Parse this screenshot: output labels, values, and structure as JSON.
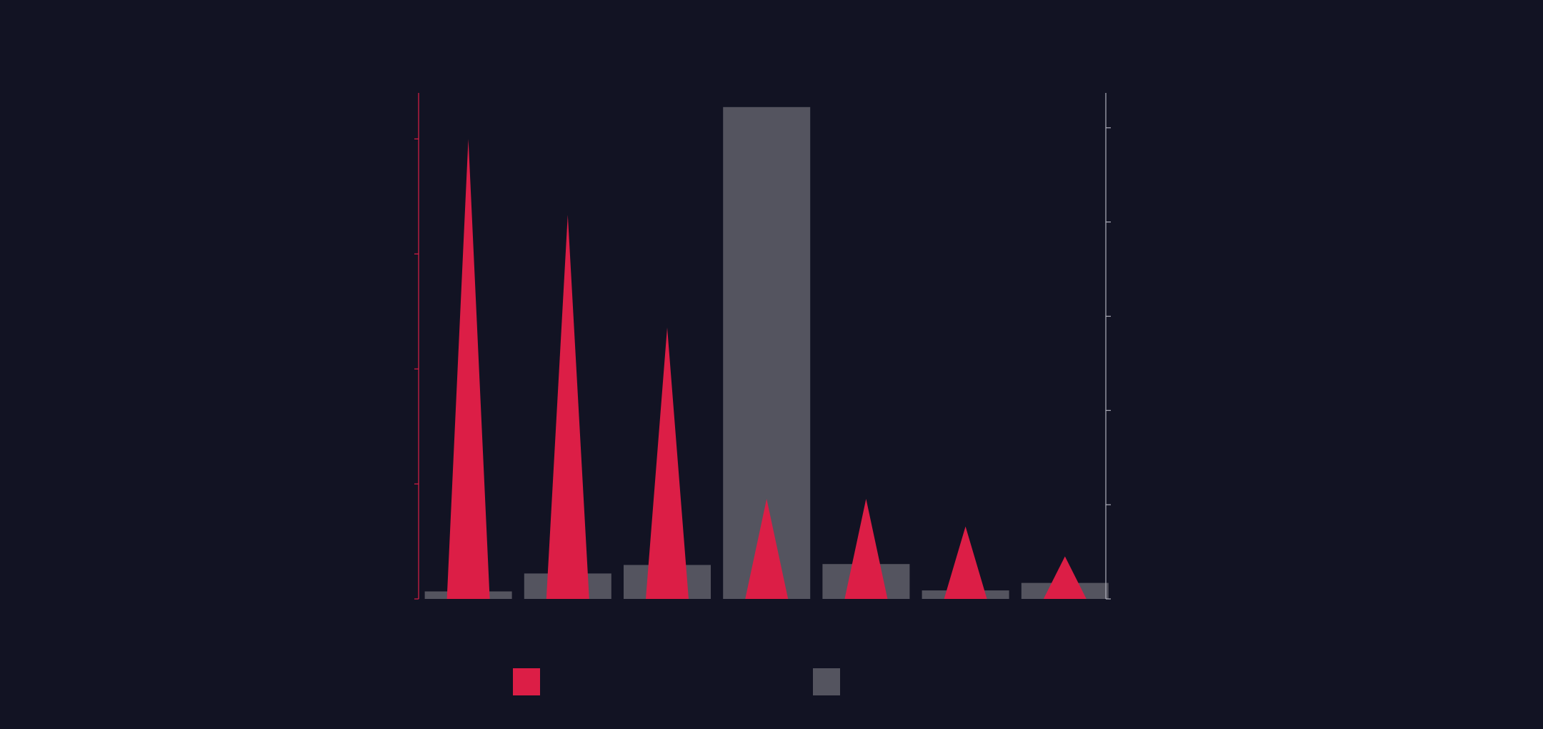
{
  "background": "#121323",
  "chart_data": {
    "type": "bar",
    "categories": [
      "",
      "",
      "",
      "",
      "",
      "",
      ""
    ],
    "title": "",
    "xlabel": "",
    "grid": false,
    "legend_position": "bottom",
    "series": [
      {
        "color": "#dc1e46",
        "marker": "triangle-spike",
        "axis": "left",
        "values": [
          4.0,
          3.34,
          2.36,
          0.87,
          0.87,
          0.63,
          0.37
        ]
      },
      {
        "color": "#54545f",
        "marker": "rect",
        "axis": "right",
        "values": [
          0.08,
          0.27,
          0.36,
          5.22,
          0.37,
          0.09,
          0.17
        ]
      }
    ],
    "left_axis": {
      "color": "#dc1e46",
      "min": 0,
      "max": 4.4,
      "ticks": [
        0,
        1,
        2,
        3,
        4
      ]
    },
    "right_axis": {
      "color": "#b0b0bc",
      "min": 0,
      "max": 5.37,
      "ticks": [
        0,
        1,
        2,
        3,
        4,
        5
      ]
    }
  },
  "legend": {
    "items": [
      {
        "color": "#dc1e46",
        "label": ""
      },
      {
        "color": "#54545f",
        "label": ""
      }
    ]
  }
}
